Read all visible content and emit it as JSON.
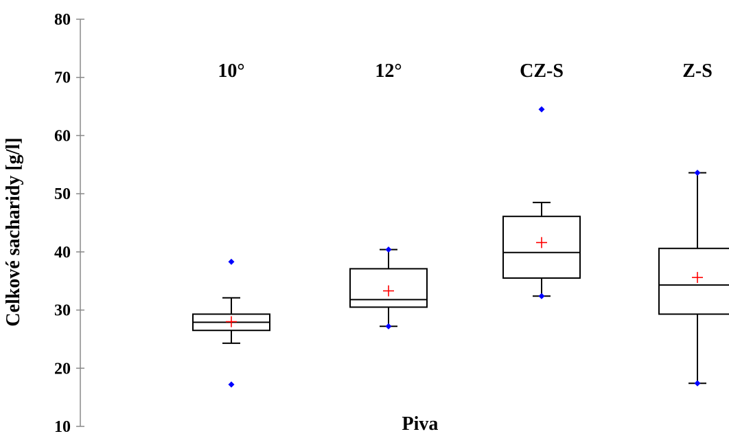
{
  "chart_data": {
    "type": "box",
    "title": "",
    "xlabel": "Piva",
    "ylabel": "Celkové sacharidy [g/l]",
    "ylim": [
      10,
      80
    ],
    "yticks": [
      10,
      20,
      30,
      40,
      50,
      60,
      70,
      80
    ],
    "grid": false,
    "legend": "none",
    "categories": [
      "10°",
      "12°",
      "CZ-S",
      "Z-S"
    ],
    "boxes": [
      {
        "label": "10°",
        "whisker_low": 24.3,
        "q1": 26.5,
        "median": 27.9,
        "q3": 29.3,
        "whisker_high": 32.1,
        "mean": 28.0,
        "min": 17.2,
        "max": 38.3
      },
      {
        "label": "12°",
        "whisker_low": 27.2,
        "q1": 30.5,
        "median": 31.8,
        "q3": 37.1,
        "whisker_high": 40.4,
        "mean": 33.3,
        "min": 27.2,
        "max": 40.4
      },
      {
        "label": "CZ-S",
        "whisker_low": 32.4,
        "q1": 35.5,
        "median": 39.9,
        "q3": 46.1,
        "whisker_high": 48.5,
        "mean": 41.6,
        "min": 32.4,
        "max": 64.5
      },
      {
        "label": "Z-S",
        "whisker_low": 17.4,
        "q1": 29.3,
        "median": 34.3,
        "q3": 40.6,
        "whisker_high": 53.6,
        "mean": 35.6,
        "min": 17.4,
        "max": 53.6
      }
    ],
    "colors": {
      "box": "#000000",
      "mean_marker": "#ff0000",
      "extreme_marker": "#0000ff"
    }
  }
}
